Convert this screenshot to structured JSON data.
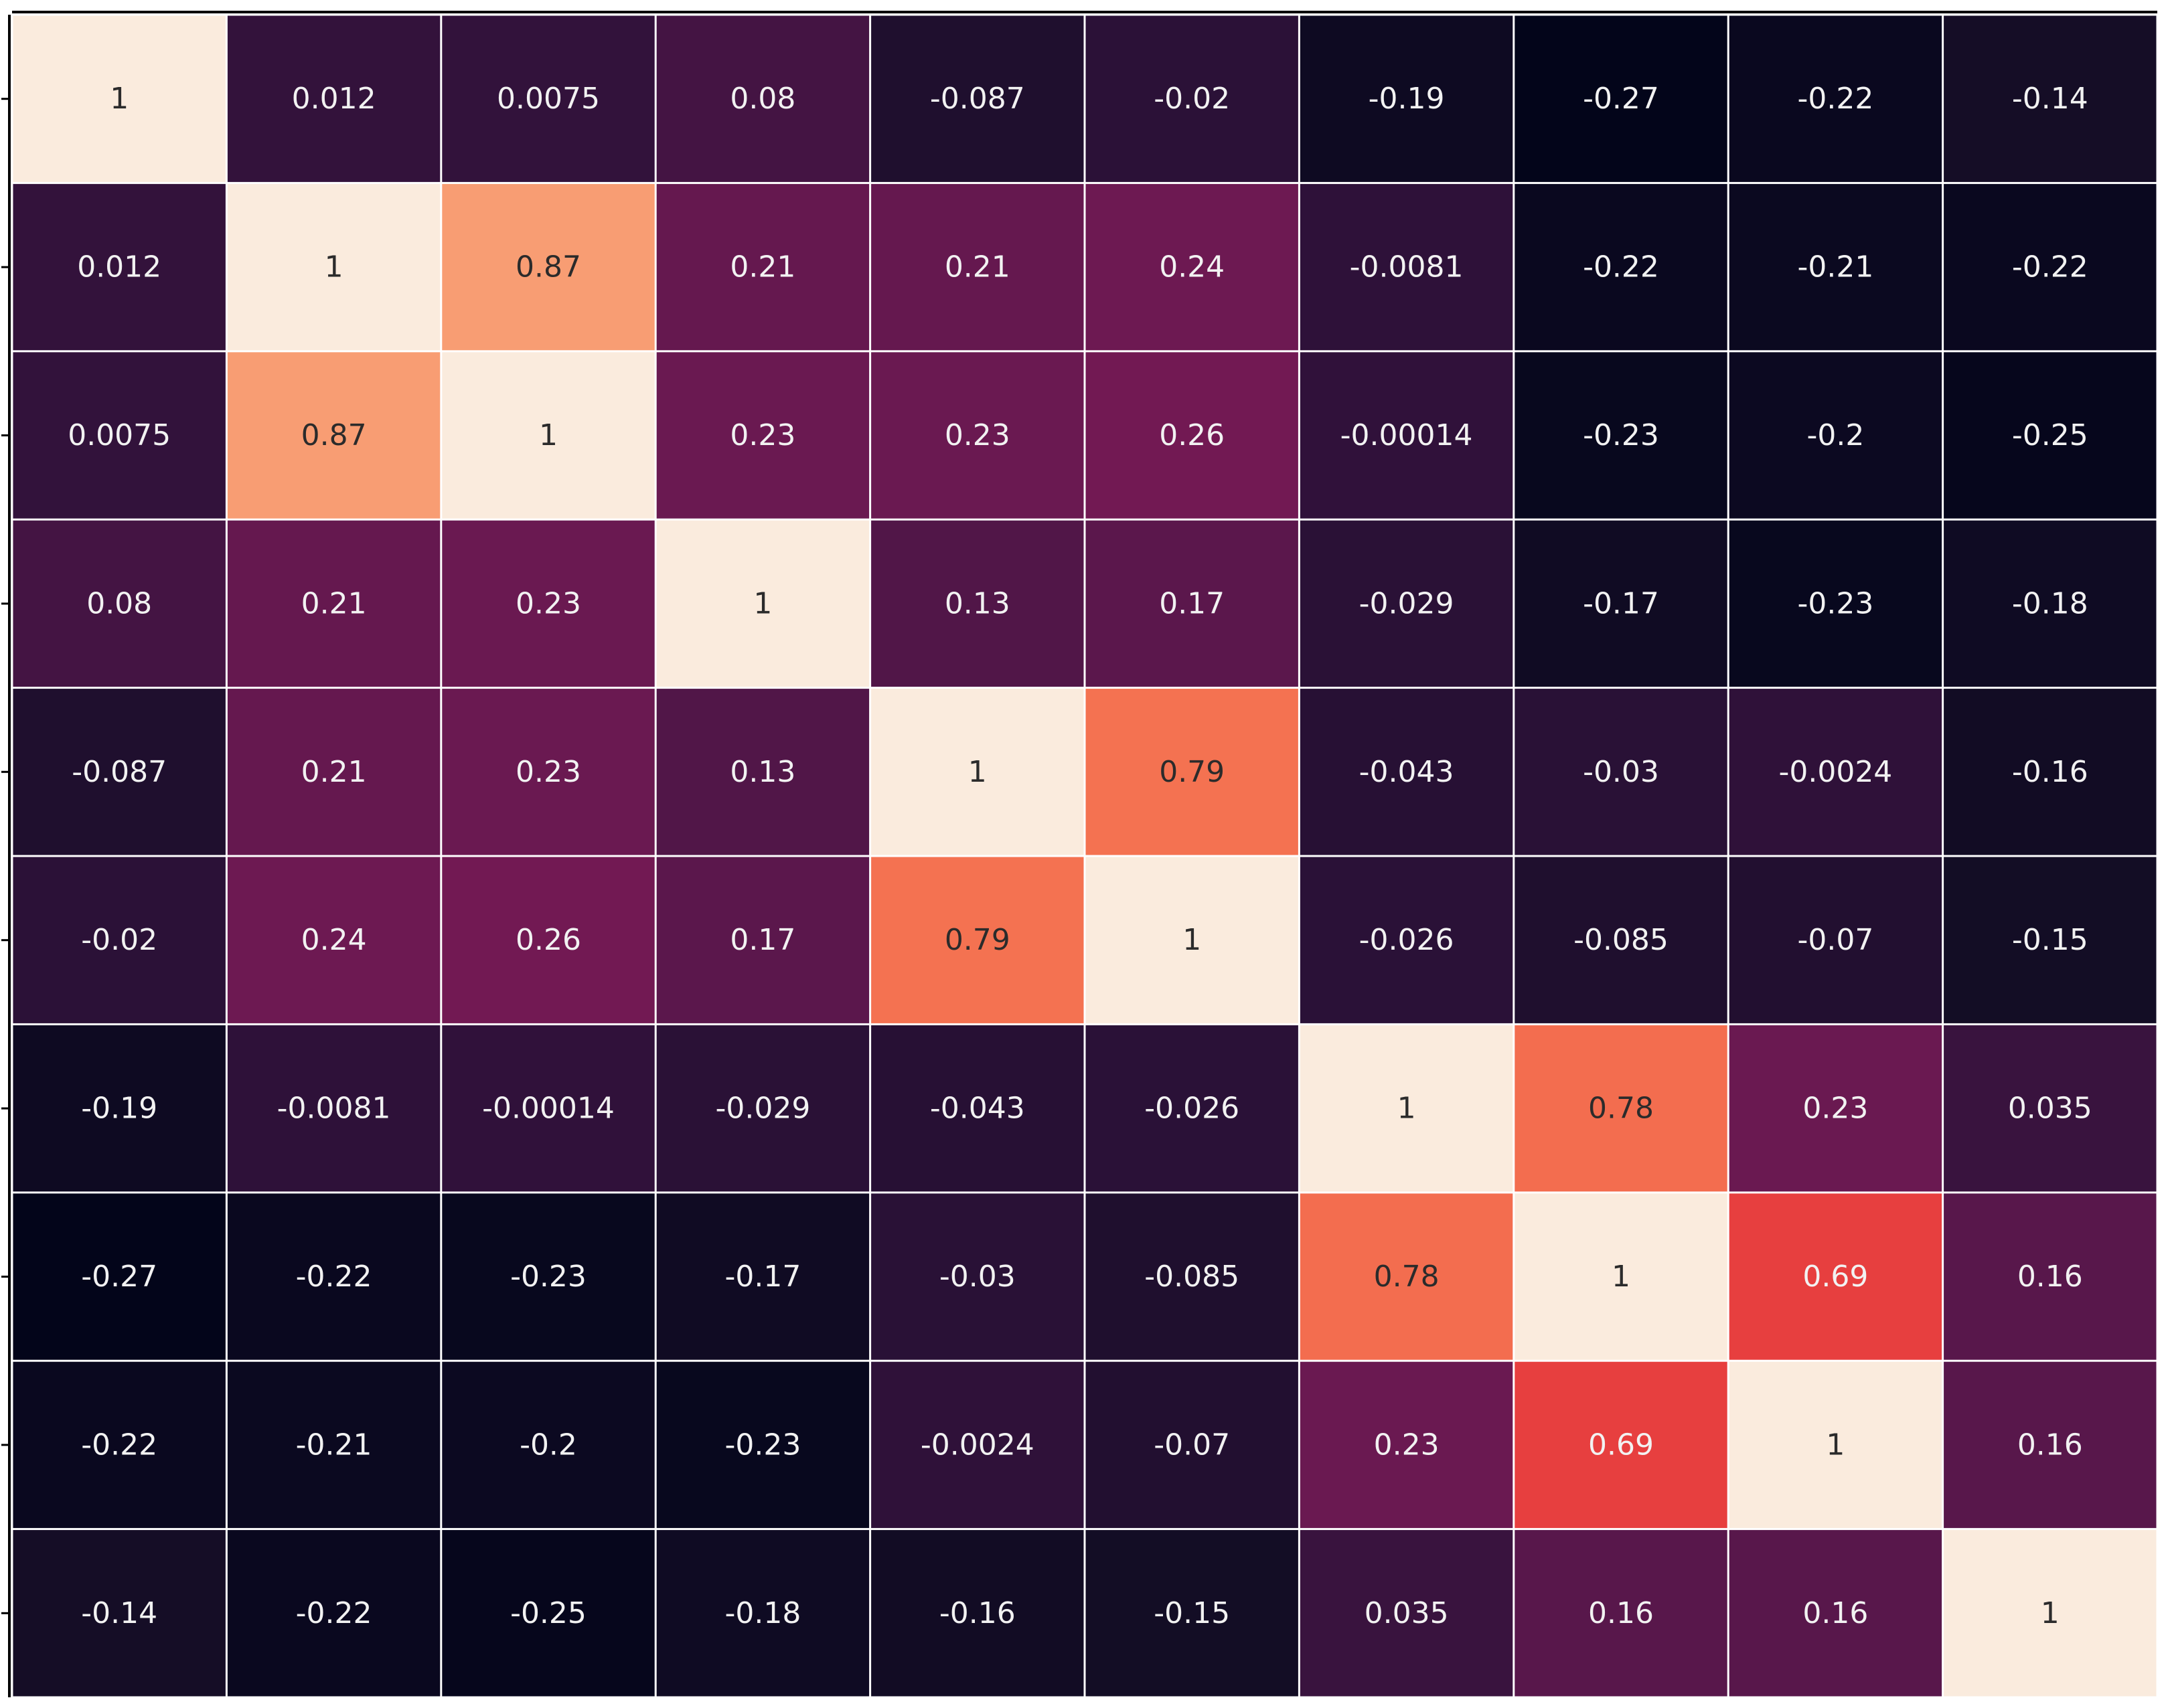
{
  "chart_data": {
    "type": "heatmap",
    "title": "",
    "xlabel": "",
    "ylabel": "",
    "colormap": "rocket",
    "vmin": -0.27,
    "vmax": 1,
    "annotated": true,
    "colorbar": false,
    "rows": 10,
    "cols": 10,
    "matrix": [
      [
        "1",
        "0.012",
        "0.0075",
        "0.08",
        "-0.087",
        "-0.02",
        "-0.19",
        "-0.27",
        "-0.22",
        "-0.14"
      ],
      [
        "0.012",
        "1",
        "0.87",
        "0.21",
        "0.21",
        "0.24",
        "-0.0081",
        "-0.22",
        "-0.21",
        "-0.22"
      ],
      [
        "0.0075",
        "0.87",
        "1",
        "0.23",
        "0.23",
        "0.26",
        "-0.00014",
        "-0.23",
        "-0.2",
        "-0.25"
      ],
      [
        "0.08",
        "0.21",
        "0.23",
        "1",
        "0.13",
        "0.17",
        "-0.029",
        "-0.17",
        "-0.23",
        "-0.18"
      ],
      [
        "-0.087",
        "0.21",
        "0.23",
        "0.13",
        "1",
        "0.79",
        "-0.043",
        "-0.03",
        "-0.0024",
        "-0.16"
      ],
      [
        "-0.02",
        "0.24",
        "0.26",
        "0.17",
        "0.79",
        "1",
        "-0.026",
        "-0.085",
        "-0.07",
        "-0.15"
      ],
      [
        "-0.19",
        "-0.0081",
        "-0.00014",
        "-0.029",
        "-0.043",
        "-0.026",
        "1",
        "0.78",
        "0.23",
        "0.035"
      ],
      [
        "-0.27",
        "-0.22",
        "-0.23",
        "-0.17",
        "-0.03",
        "-0.085",
        "0.78",
        "1",
        "0.69",
        "0.16"
      ],
      [
        "-0.22",
        "-0.21",
        "-0.2",
        "-0.23",
        "-0.0024",
        "-0.07",
        "0.23",
        "0.69",
        "1",
        "0.16"
      ],
      [
        "-0.14",
        "-0.22",
        "-0.25",
        "-0.18",
        "-0.16",
        "-0.15",
        "0.035",
        "0.16",
        "0.16",
        "1"
      ]
    ]
  }
}
